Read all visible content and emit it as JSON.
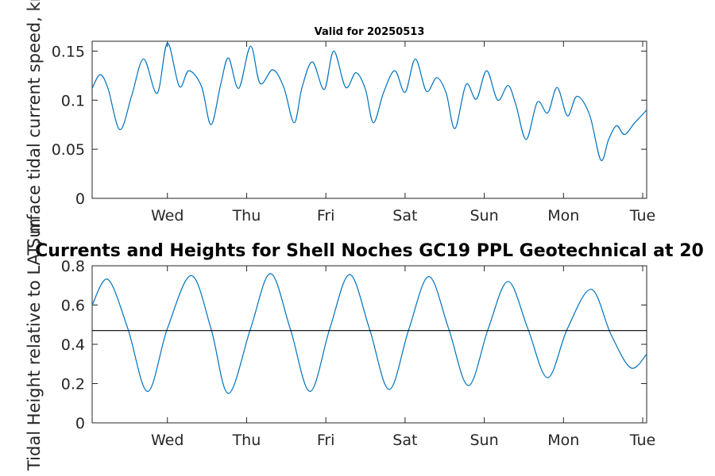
{
  "chart_data": [
    {
      "type": "line",
      "title": "Valid for 20250513",
      "ylabel": "Surface tidal current speed, kn",
      "xlabel": "",
      "x_tick_labels": [
        "Wed",
        "Thu",
        "Fri",
        "Sat",
        "Sun",
        "Mon",
        "Tue"
      ],
      "y_ticks": [
        "0",
        "0.05",
        "0.1",
        "0.15"
      ],
      "ylim": [
        0,
        0.16
      ],
      "xlim_days": [
        0,
        7.0
      ],
      "grid": false,
      "series": [
        {
          "color": "#0072bd",
          "x_days": [
            0.0,
            0.1,
            0.2,
            0.35,
            0.5,
            0.65,
            0.82,
            0.95,
            1.1,
            1.22,
            1.38,
            1.5,
            1.62,
            1.72,
            1.85,
            2.0,
            2.12,
            2.28,
            2.42,
            2.55,
            2.65,
            2.78,
            2.93,
            3.05,
            3.2,
            3.33,
            3.45,
            3.55,
            3.68,
            3.82,
            3.95,
            4.08,
            4.22,
            4.35,
            4.47,
            4.58,
            4.72,
            4.85,
            4.98,
            5.12,
            5.25,
            5.35,
            5.48,
            5.62,
            5.75,
            5.87,
            6.0,
            6.12,
            6.28,
            6.42,
            6.52,
            6.62,
            6.72,
            6.85,
            7.0
          ],
          "values": [
            0.112,
            0.126,
            0.112,
            0.07,
            0.105,
            0.142,
            0.107,
            0.158,
            0.114,
            0.13,
            0.114,
            0.075,
            0.115,
            0.143,
            0.112,
            0.155,
            0.117,
            0.131,
            0.113,
            0.077,
            0.113,
            0.139,
            0.111,
            0.15,
            0.113,
            0.128,
            0.111,
            0.077,
            0.108,
            0.13,
            0.108,
            0.142,
            0.109,
            0.123,
            0.107,
            0.071,
            0.116,
            0.101,
            0.13,
            0.1,
            0.115,
            0.095,
            0.06,
            0.098,
            0.087,
            0.113,
            0.084,
            0.104,
            0.085,
            0.039,
            0.06,
            0.074,
            0.065,
            0.077,
            0.09
          ]
        }
      ]
    },
    {
      "type": "line",
      "title": "Currents and Heights for Shell Noches   GC19 PPL  Geotechnical at 20",
      "ylabel": "Tidal Height relative to LAT, m",
      "xlabel": "",
      "x_tick_labels": [
        "Wed",
        "Thu",
        "Fri",
        "Sat",
        "Sun",
        "Mon",
        "Tue"
      ],
      "y_ticks": [
        "0",
        "0.2",
        "0.4",
        "0.6",
        "0.8"
      ],
      "ylim": [
        0,
        0.8
      ],
      "xlim_days": [
        0,
        7.0
      ],
      "grid": false,
      "series": [
        {
          "color": "#0072bd",
          "x_days": [
            0.0,
            0.2,
            0.45,
            0.7,
            0.95,
            1.25,
            1.5,
            1.72,
            2.0,
            2.25,
            2.5,
            2.75,
            3.0,
            3.25,
            3.5,
            3.75,
            4.0,
            4.25,
            4.5,
            4.75,
            5.0,
            5.25,
            5.5,
            5.75,
            6.0,
            6.3,
            6.55,
            6.8,
            7.0
          ],
          "values": [
            0.6,
            0.73,
            0.48,
            0.16,
            0.48,
            0.75,
            0.48,
            0.15,
            0.48,
            0.76,
            0.48,
            0.16,
            0.48,
            0.755,
            0.48,
            0.17,
            0.48,
            0.745,
            0.48,
            0.19,
            0.48,
            0.72,
            0.48,
            0.23,
            0.48,
            0.68,
            0.45,
            0.28,
            0.35
          ]
        },
        {
          "color": "#000000",
          "x_days": [
            0.0,
            7.0
          ],
          "values": [
            0.47,
            0.47
          ]
        }
      ]
    }
  ]
}
